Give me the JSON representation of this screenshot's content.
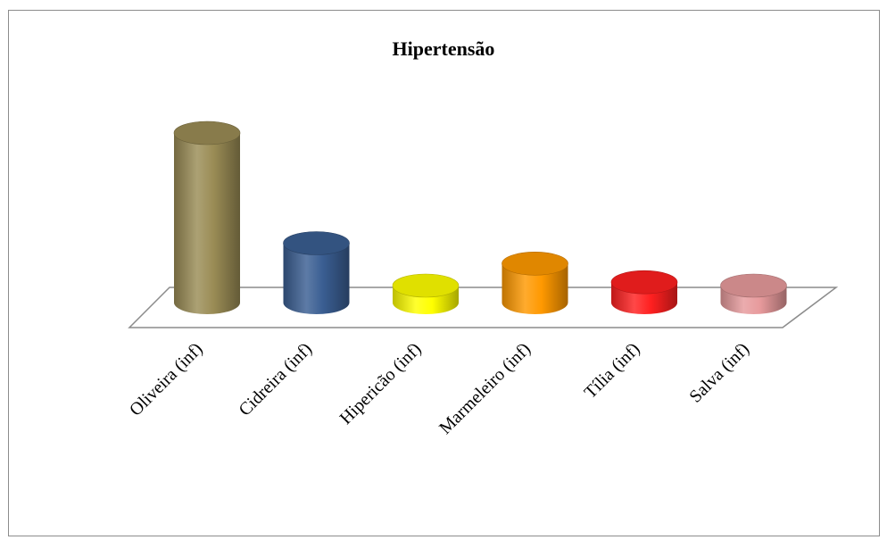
{
  "chart_data": {
    "type": "bar",
    "style": "3d-cylinder",
    "title": "Hipertensão",
    "xlabel": "",
    "ylabel": "",
    "grid": false,
    "legend": "none",
    "categories": [
      "Oliveira (inf)",
      "Cidreira (inf)",
      "Hipericão (inf)",
      "Marmeleiro (inf)",
      "Tília (inf)",
      "Salva (inf)"
    ],
    "values": [
      10,
      3.5,
      1,
      2.3,
      1.2,
      1
    ],
    "ylim": [
      0,
      10
    ],
    "colors": [
      "#9a8c55",
      "#3a5e92",
      "#ffff00",
      "#ff9900",
      "#ff2020",
      "#e79a9c"
    ]
  }
}
